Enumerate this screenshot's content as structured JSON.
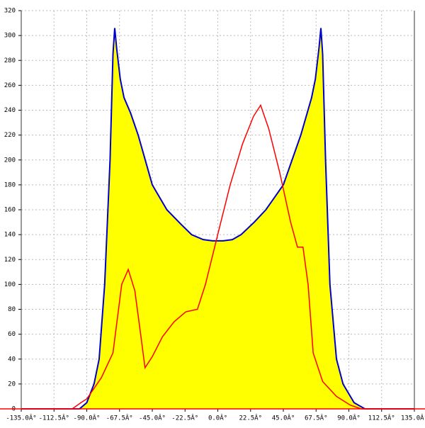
{
  "chart_data": {
    "type": "area",
    "xlim": [
      -135,
      135
    ],
    "ylim": [
      0,
      320
    ],
    "xticks": [
      {
        "value": -135,
        "label": "-135.0Â°"
      },
      {
        "value": -112.5,
        "label": "-112.5Â°"
      },
      {
        "value": -90,
        "label": "-90.0Â°"
      },
      {
        "value": -67.5,
        "label": "-67.5Â°"
      },
      {
        "value": -45,
        "label": "-45.0Â°"
      },
      {
        "value": -22.5,
        "label": "-22.5Â°"
      },
      {
        "value": 0,
        "label": "0.0Â°"
      },
      {
        "value": 22.5,
        "label": "22.5Â°"
      },
      {
        "value": 45,
        "label": "45.0Â°"
      },
      {
        "value": 67.5,
        "label": "67.5Â°"
      },
      {
        "value": 90,
        "label": "90.0Â°"
      },
      {
        "value": 112.5,
        "label": "112.5Â°"
      },
      {
        "value": 135,
        "label": "135.0Â°"
      }
    ],
    "yticks": [
      0,
      20,
      40,
      60,
      80,
      100,
      120,
      140,
      160,
      180,
      200,
      220,
      240,
      260,
      280,
      300,
      320
    ],
    "grid": true,
    "series": [
      {
        "type": "area",
        "color": "#0000cc",
        "fill": "#ffff00",
        "x": [
          -135,
          -95,
          -90,
          -85,
          -81.5,
          -77.7,
          -74,
          -72,
          -70.8,
          -69.5,
          -67,
          -64.4,
          -60,
          -54.7,
          -45,
          -35,
          -25,
          -18,
          -10,
          -3.6,
          3.6,
          10,
          16,
          25,
          33,
          45,
          57,
          64.4,
          67,
          69.5,
          70.8,
          72,
          74,
          77,
          81.5,
          86,
          93.6,
          101,
          135
        ],
        "values": [
          0,
          0,
          5,
          20,
          40,
          100,
          200,
          285,
          306,
          290,
          265,
          250,
          238,
          220,
          180,
          160,
          148,
          140,
          136,
          135,
          135,
          136,
          140,
          150,
          160,
          180,
          220,
          250,
          265,
          290,
          306,
          285,
          200,
          100,
          40,
          20,
          5,
          0,
          0
        ]
      },
      {
        "type": "line",
        "color": "#ff0000",
        "x": [
          -135,
          -100,
          -94,
          -90,
          -80,
          -72,
          -66,
          -61.5,
          -57,
          -53,
          -50,
          -45,
          -38,
          -30,
          -22,
          -14,
          -8.5,
          1,
          8.5,
          17,
          24.5,
          29.4,
          35,
          42.5,
          50,
          54.7,
          58.5,
          62,
          65.5,
          72,
          81.5,
          91,
          98.5,
          135
        ],
        "values": [
          0,
          0,
          5,
          8,
          25,
          45,
          100,
          112,
          95,
          60,
          33,
          42,
          58,
          70,
          78,
          80,
          100,
          145,
          180,
          213,
          235,
          244,
          225,
          190,
          150,
          130,
          130,
          100,
          45,
          22,
          10,
          3,
          0,
          0
        ]
      }
    ]
  }
}
